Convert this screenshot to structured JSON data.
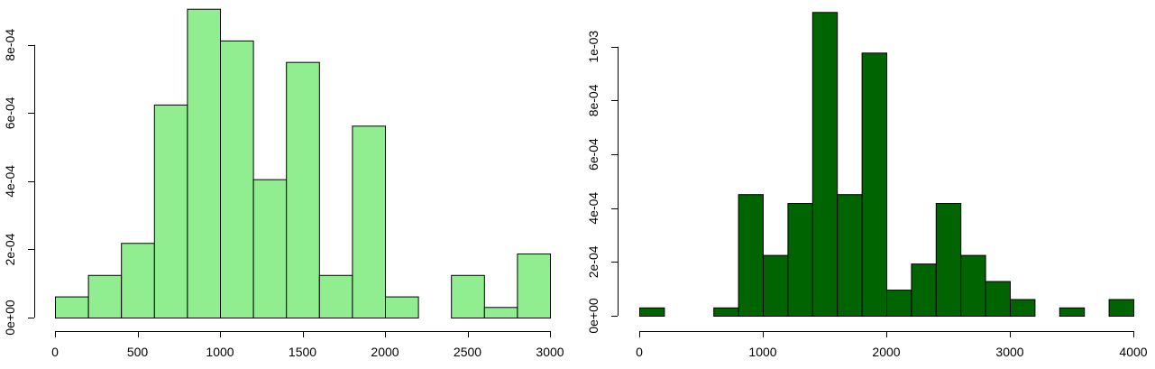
{
  "chart_data": [
    {
      "type": "bar",
      "subtype": "histogram",
      "title": "",
      "xlabel": "",
      "ylabel": "",
      "fill": "#90ee90",
      "stroke": "#000000",
      "bin_width": 200,
      "bins": [
        {
          "start": 0,
          "end": 200,
          "density": 6.2e-05
        },
        {
          "start": 200,
          "end": 400,
          "density": 0.000125
        },
        {
          "start": 400,
          "end": 600,
          "density": 0.000219
        },
        {
          "start": 600,
          "end": 800,
          "density": 0.000625
        },
        {
          "start": 800,
          "end": 1000,
          "density": 0.000906
        },
        {
          "start": 1000,
          "end": 1200,
          "density": 0.000813
        },
        {
          "start": 1200,
          "end": 1400,
          "density": 0.000406
        },
        {
          "start": 1400,
          "end": 1600,
          "density": 0.00075
        },
        {
          "start": 1600,
          "end": 1800,
          "density": 0.000125
        },
        {
          "start": 1800,
          "end": 2000,
          "density": 0.000563
        },
        {
          "start": 2000,
          "end": 2200,
          "density": 6.2e-05
        },
        {
          "start": 2200,
          "end": 2400,
          "density": 0
        },
        {
          "start": 2400,
          "end": 2600,
          "density": 0.000125
        },
        {
          "start": 2600,
          "end": 2800,
          "density": 3.1e-05
        },
        {
          "start": 2800,
          "end": 3000,
          "density": 0.000188
        }
      ],
      "xlim": [
        0,
        3000
      ],
      "ylim": [
        0,
        0.0009
      ],
      "x_ticks": [
        0,
        500,
        1000,
        1500,
        2000,
        2500,
        3000
      ],
      "x_tick_labels": [
        "0",
        "500",
        "1000",
        "1500",
        "2000",
        "2500",
        "3000"
      ],
      "y_ticks": [
        0,
        0.0002,
        0.0004,
        0.0006,
        0.0008
      ],
      "y_tick_labels": [
        "0e+00",
        "2e-04",
        "4e-04",
        "6e-04",
        "8e-04"
      ],
      "grid": false,
      "legend": "none"
    },
    {
      "type": "bar",
      "subtype": "histogram",
      "title": "",
      "xlabel": "",
      "ylabel": "",
      "fill": "#006400",
      "stroke": "#000000",
      "bin_width": 200,
      "bins": [
        {
          "start": 0,
          "end": 200,
          "density": 3.1e-05
        },
        {
          "start": 200,
          "end": 400,
          "density": 0
        },
        {
          "start": 400,
          "end": 600,
          "density": 0
        },
        {
          "start": 600,
          "end": 800,
          "density": 3.1e-05
        },
        {
          "start": 800,
          "end": 1000,
          "density": 0.000452
        },
        {
          "start": 1000,
          "end": 1200,
          "density": 0.000226
        },
        {
          "start": 1200,
          "end": 1400,
          "density": 0.000419
        },
        {
          "start": 1400,
          "end": 1600,
          "density": 0.001129
        },
        {
          "start": 1600,
          "end": 1800,
          "density": 0.000452
        },
        {
          "start": 1800,
          "end": 2000,
          "density": 0.000978
        },
        {
          "start": 2000,
          "end": 2200,
          "density": 9.7e-05
        },
        {
          "start": 2200,
          "end": 2400,
          "density": 0.000194
        },
        {
          "start": 2400,
          "end": 2600,
          "density": 0.000419
        },
        {
          "start": 2600,
          "end": 2800,
          "density": 0.000226
        },
        {
          "start": 2800,
          "end": 3000,
          "density": 0.000129
        },
        {
          "start": 3000,
          "end": 3200,
          "density": 6.2e-05
        },
        {
          "start": 3200,
          "end": 3400,
          "density": 0
        },
        {
          "start": 3400,
          "end": 3600,
          "density": 3.1e-05
        },
        {
          "start": 3600,
          "end": 3800,
          "density": 0
        },
        {
          "start": 3800,
          "end": 4000,
          "density": 6.2e-05
        }
      ],
      "xlim": [
        0,
        4000
      ],
      "ylim": [
        0,
        0.00114
      ],
      "x_ticks": [
        0,
        1000,
        2000,
        3000,
        4000
      ],
      "x_tick_labels": [
        "0",
        "1000",
        "2000",
        "3000",
        "4000"
      ],
      "y_ticks": [
        0,
        0.0002,
        0.0004,
        0.0006,
        0.0008,
        0.001
      ],
      "y_tick_labels": [
        "0e+00",
        "2e-04",
        "4e-04",
        "6e-04",
        "8e-04",
        "1e-03"
      ],
      "grid": false,
      "legend": "none"
    }
  ]
}
